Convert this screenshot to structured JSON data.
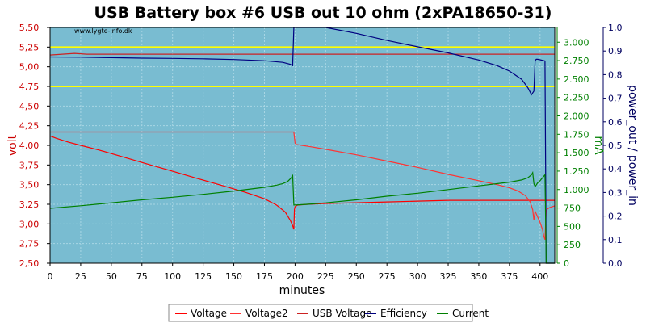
{
  "chart_data": {
    "type": "line",
    "title": "USB Battery box #6 USB out 10 ohm (2xPA18650-31)",
    "watermark": "www.lygte-info.dk",
    "xlabel": "minutes",
    "ylabel_left": "volt",
    "ylabel_right1": "mA",
    "ylabel_right2": "power_out / power_in",
    "xlim": [
      0,
      412
    ],
    "ylim_left": [
      2.5,
      5.5
    ],
    "ylim_right1": [
      0,
      3200
    ],
    "ylim_right2": [
      0,
      1.0
    ],
    "x_ticks": [
      "0",
      "25",
      "50",
      "75",
      "100",
      "125",
      "150",
      "175",
      "200",
      "225",
      "250",
      "275",
      "300",
      "325",
      "350",
      "375",
      "400"
    ],
    "x_tick_values": [
      0,
      25,
      50,
      75,
      100,
      125,
      150,
      175,
      200,
      225,
      250,
      275,
      300,
      325,
      350,
      375,
      400
    ],
    "y_left_ticks": [
      "2,50",
      "2,75",
      "3,00",
      "3,25",
      "3,50",
      "3,75",
      "4,00",
      "4,25",
      "4,50",
      "4,75",
      "5,00",
      "5,25",
      "5,50"
    ],
    "y_left_tick_values": [
      2.5,
      2.75,
      3.0,
      3.25,
      3.5,
      3.75,
      4.0,
      4.25,
      4.5,
      4.75,
      5.0,
      5.25,
      5.5
    ],
    "y_right1_ticks": [
      "0",
      "250",
      "500",
      "750",
      "1.000",
      "1.250",
      "1.500",
      "1.750",
      "2.000",
      "2.250",
      "2.500",
      "2.750",
      "3.000"
    ],
    "y_right1_tick_values": [
      0,
      250,
      500,
      750,
      1000,
      1250,
      1500,
      1750,
      2000,
      2250,
      2500,
      2750,
      3000
    ],
    "y_right2_ticks": [
      "0,0",
      "0,1",
      "0,2",
      "0,3",
      "0,4",
      "0,5",
      "0,6",
      "0,7",
      "0,8",
      "0,9",
      "1,0"
    ],
    "y_right2_tick_values": [
      0,
      0.1,
      0.2,
      0.3,
      0.4,
      0.5,
      0.6,
      0.7,
      0.8,
      0.9,
      1.0
    ],
    "reference_lines": [
      {
        "axis": "left",
        "value": 5.25,
        "color": "#ffff00"
      },
      {
        "axis": "left",
        "value": 4.75,
        "color": "#ffff00"
      }
    ],
    "grid": true,
    "legend_position": "bottom",
    "series": [
      {
        "name": "Voltage",
        "axis": "left",
        "color": "#ff0000",
        "x": [
          0,
          5,
          15,
          25,
          40,
          60,
          80,
          100,
          120,
          140,
          160,
          175,
          185,
          192,
          196,
          198,
          199,
          199.5,
          200,
          202,
          210,
          225,
          250,
          275,
          300,
          325,
          350,
          365,
          375,
          385,
          390,
          393,
          395,
          397,
          399,
          401,
          403,
          404,
          405,
          406,
          407,
          408,
          410,
          412
        ],
        "y": [
          4.12,
          4.09,
          4.04,
          4.0,
          3.94,
          3.85,
          3.76,
          3.67,
          3.58,
          3.49,
          3.4,
          3.32,
          3.24,
          3.15,
          3.05,
          2.98,
          2.93,
          3.18,
          3.22,
          3.24,
          3.25,
          3.26,
          3.27,
          3.28,
          3.29,
          3.3,
          3.3,
          3.3,
          3.3,
          3.3,
          3.3,
          3.3,
          3.3,
          3.3,
          3.3,
          3.3,
          3.3,
          3.3,
          3.3,
          3.3,
          3.3,
          3.3,
          3.3,
          3.3
        ]
      },
      {
        "name": "Voltage2",
        "axis": "left",
        "color": "#ff3333",
        "x": [
          0,
          198,
          199,
          200,
          201,
          210,
          225,
          250,
          275,
          300,
          325,
          350,
          365,
          375,
          382,
          388,
          392,
          394,
          395,
          396,
          398,
          400,
          402,
          403,
          404,
          405,
          406,
          407,
          408,
          410,
          412
        ],
        "y": [
          4.17,
          4.17,
          4.17,
          4.03,
          4.01,
          3.99,
          3.95,
          3.88,
          3.8,
          3.72,
          3.63,
          3.55,
          3.5,
          3.46,
          3.42,
          3.36,
          3.28,
          3.18,
          3.05,
          3.16,
          3.09,
          3.02,
          2.93,
          2.85,
          2.8,
          3.17,
          3.19,
          3.2,
          3.21,
          3.22,
          3.23
        ]
      },
      {
        "name": "USB Voltage",
        "axis": "left",
        "color": "#cc2222",
        "x": [
          0,
          10,
          20,
          30,
          50,
          100,
          150,
          198,
          199,
          200,
          210,
          250,
          300,
          350,
          390,
          400,
          404,
          405,
          406,
          407,
          408,
          410,
          412
        ],
        "y": [
          5.15,
          5.16,
          5.17,
          5.16,
          5.16,
          5.16,
          5.16,
          5.16,
          5.16,
          5.16,
          5.16,
          5.16,
          5.16,
          5.16,
          5.16,
          5.16,
          5.16,
          5.16,
          5.16,
          5.16,
          5.16,
          5.16,
          5.16
        ]
      },
      {
        "name": "Efficiency",
        "axis": "right2",
        "color": "#000080",
        "x": [
          0,
          25,
          50,
          75,
          100,
          125,
          150,
          175,
          190,
          196,
          198,
          199,
          200,
          209,
          210,
          225,
          250,
          275,
          300,
          325,
          350,
          365,
          375,
          385,
          390,
          393,
          395,
          396,
          397,
          398,
          400,
          404,
          405,
          406,
          408,
          410,
          412
        ],
        "y": [
          0.875,
          0.874,
          0.872,
          0.87,
          0.869,
          0.867,
          0.864,
          0.859,
          0.852,
          0.844,
          0.838,
          1.0,
          1.0,
          1.0,
          1.0,
          1.0,
          0.975,
          0.945,
          0.918,
          0.892,
          0.862,
          0.838,
          0.815,
          0.78,
          0.745,
          0.715,
          0.73,
          0.86,
          0.865,
          0.865,
          0.863,
          0.858,
          0.0,
          0.0,
          0.0,
          0.0,
          0.0
        ]
      },
      {
        "name": "Current",
        "axis": "right1",
        "color": "#008000",
        "x": [
          0,
          25,
          50,
          75,
          100,
          125,
          150,
          175,
          185,
          190,
          194,
          197,
          198,
          199,
          200,
          210,
          225,
          250,
          275,
          300,
          325,
          350,
          375,
          385,
          390,
          393,
          394,
          395,
          396,
          398,
          400,
          402,
          404,
          405,
          406,
          407,
          408,
          410,
          412
        ],
        "y": [
          745,
          780,
          820,
          860,
          895,
          935,
          980,
          1030,
          1060,
          1080,
          1110,
          1160,
          1200,
          790,
          790,
          800,
          820,
          860,
          910,
          950,
          1000,
          1050,
          1100,
          1130,
          1160,
          1200,
          1230,
          1080,
          1040,
          1090,
          1120,
          1160,
          1200,
          0,
          0,
          0,
          0,
          0,
          0
        ]
      }
    ]
  }
}
